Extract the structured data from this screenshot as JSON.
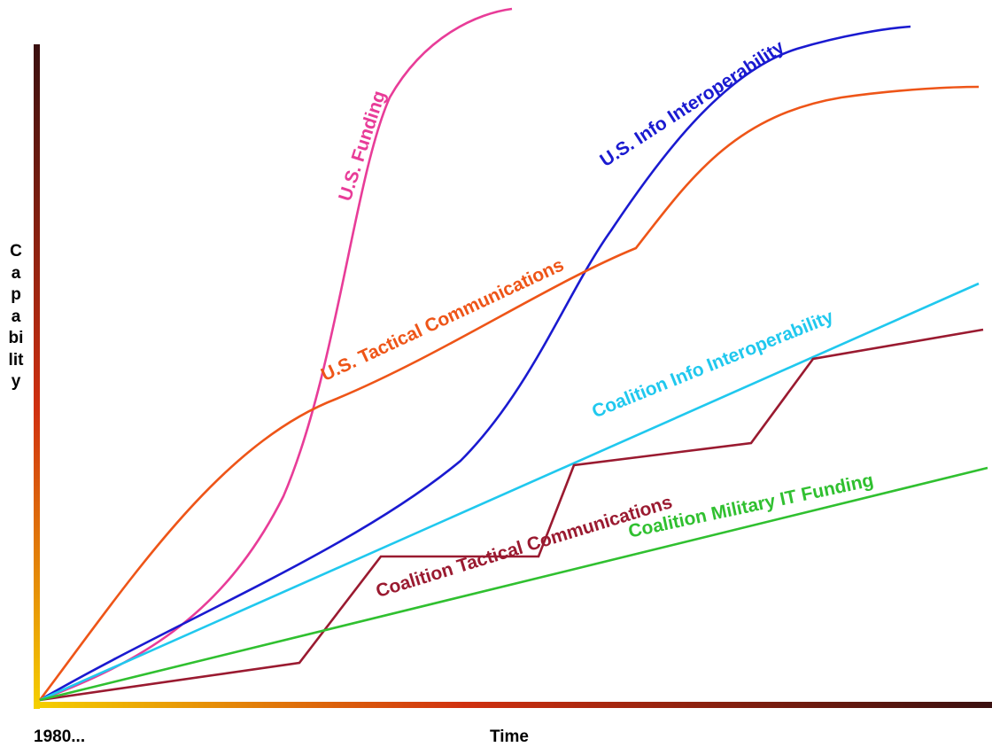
{
  "axes": {
    "y_label": "Capability",
    "x_label": "Time",
    "x_start": "1980..."
  },
  "curves": [
    {
      "label": "U.S. Funding"
    },
    {
      "label": "U.S. Info Interoperability"
    },
    {
      "label": "U.S. Tactical Communications"
    },
    {
      "label": "Coalition Info Interoperability"
    },
    {
      "label": "Coalition Tactical Communications"
    },
    {
      "label": "Coalition Military IT Funding"
    }
  ]
}
